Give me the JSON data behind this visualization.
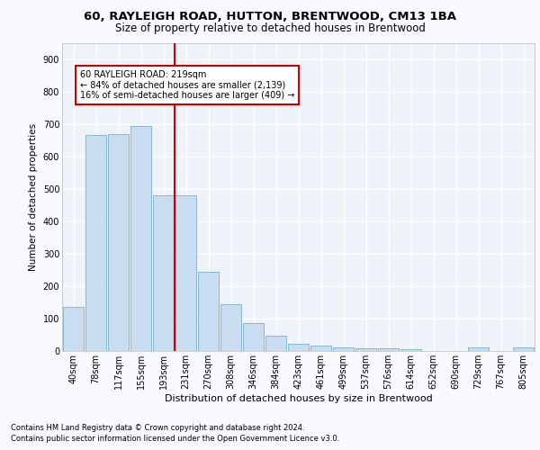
{
  "title1": "60, RAYLEIGH ROAD, HUTTON, BRENTWOOD, CM13 1BA",
  "title2": "Size of property relative to detached houses in Brentwood",
  "xlabel": "Distribution of detached houses by size in Brentwood",
  "ylabel": "Number of detached properties",
  "footnote1": "Contains HM Land Registry data © Crown copyright and database right 2024.",
  "footnote2": "Contains public sector information licensed under the Open Government Licence v3.0.",
  "categories": [
    "40sqm",
    "78sqm",
    "117sqm",
    "155sqm",
    "193sqm",
    "231sqm",
    "270sqm",
    "308sqm",
    "346sqm",
    "384sqm",
    "423sqm",
    "461sqm",
    "499sqm",
    "537sqm",
    "576sqm",
    "614sqm",
    "652sqm",
    "690sqm",
    "729sqm",
    "767sqm",
    "805sqm"
  ],
  "values": [
    135,
    665,
    668,
    693,
    480,
    480,
    245,
    145,
    85,
    48,
    22,
    18,
    10,
    8,
    8,
    6,
    0,
    0,
    10,
    0,
    10
  ],
  "bar_color": "#c8ddef",
  "bar_edge_color": "#7aafc8",
  "vline_color": "#cc0000",
  "annotation_text": "60 RAYLEIGH ROAD: 219sqm\n← 84% of detached houses are smaller (2,139)\n16% of semi-detached houses are larger (409) →",
  "annotation_box_color": "#ffffff",
  "annotation_box_edge": "#cc0000",
  "ylim": [
    0,
    950
  ],
  "yticks": [
    0,
    100,
    200,
    300,
    400,
    500,
    600,
    700,
    800,
    900
  ],
  "bg_color": "#eef2f9",
  "grid_color": "#ffffff",
  "fig_bg_color": "#f8fafd",
  "title1_fontsize": 9.5,
  "title2_fontsize": 8.5,
  "xlabel_fontsize": 8,
  "ylabel_fontsize": 7.5,
  "footnote_fontsize": 6,
  "tick_fontsize": 7,
  "annot_fontsize": 7
}
